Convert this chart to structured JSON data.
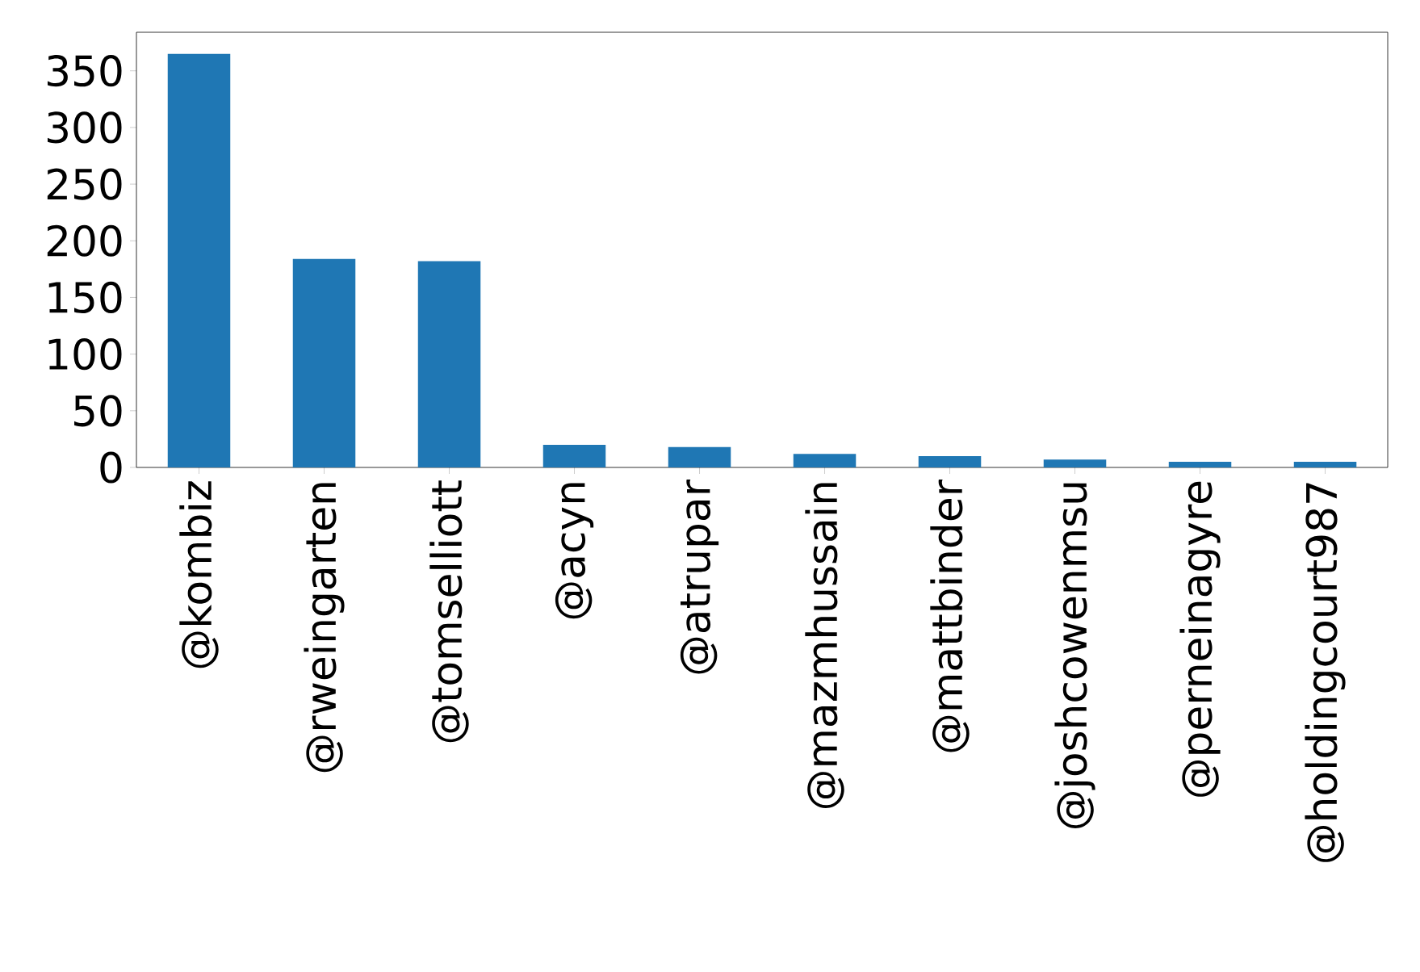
{
  "chart_data": {
    "type": "bar",
    "categories": [
      "@kombiz",
      "@rweingarten",
      "@tomselliott",
      "@acyn",
      "@atrupar",
      "@mazmhussain",
      "@mattbinder",
      "@joshcowenmsu",
      "@perneinagyre",
      "@holdingcourt987"
    ],
    "values": [
      365,
      184,
      182,
      20,
      18,
      12,
      10,
      7,
      5,
      5
    ],
    "color": "#1f77b4",
    "ylim": [
      0,
      384
    ],
    "yticks": [
      0,
      50,
      100,
      150,
      200,
      250,
      300,
      350
    ]
  }
}
